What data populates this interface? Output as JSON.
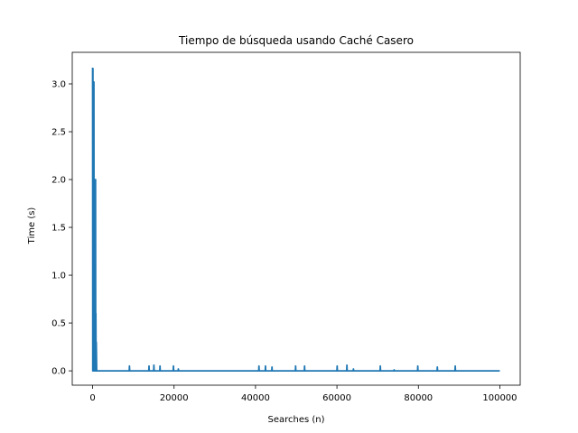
{
  "chart_data": {
    "type": "line",
    "title": "Tiempo de búsqueda usando Caché Casero",
    "xlabel": "Searches (n)",
    "ylabel": "Time (s)",
    "xlim": [
      -5000,
      105000
    ],
    "ylim": [
      -0.15,
      3.33
    ],
    "xticks": [
      0,
      20000,
      40000,
      60000,
      80000,
      100000
    ],
    "xtick_labels": [
      "0",
      "20000",
      "40000",
      "60000",
      "80000",
      "100000"
    ],
    "yticks": [
      0.0,
      0.5,
      1.0,
      1.5,
      2.0,
      2.5,
      3.0
    ],
    "ytick_labels": [
      "0.0",
      "0.5",
      "1.0",
      "1.5",
      "2.0",
      "2.5",
      "3.0"
    ],
    "grid": false,
    "color": "#1f77b4",
    "series": [
      {
        "x": [
          0,
          40,
          80,
          120,
          160,
          200,
          240,
          280,
          320,
          360,
          400,
          440,
          480,
          520,
          560,
          600,
          640,
          680,
          720,
          760,
          800,
          850,
          900,
          1000,
          1500,
          3000,
          6000,
          9000,
          9050,
          9100,
          12000,
          13800,
          13850,
          13900,
          15000,
          15050,
          15100,
          16500,
          16550,
          16600,
          19800,
          19850,
          19900,
          21000,
          21050,
          21100,
          30000,
          40800,
          40850,
          40900,
          42400,
          42450,
          42500,
          44000,
          44050,
          44100,
          49800,
          49850,
          49900,
          52000,
          52050,
          52100,
          56000,
          60000,
          60050,
          60100,
          62400,
          62450,
          62500,
          64000,
          64050,
          64100,
          67000,
          70600,
          70650,
          70700,
          74000,
          74050,
          74100,
          79800,
          79850,
          79900,
          84600,
          84650,
          84700,
          89000,
          89050,
          89100,
          95000,
          100000
        ],
        "values": [
          3.17,
          0.0,
          3.16,
          0.01,
          2.7,
          0.0,
          2.45,
          0.01,
          3.02,
          0.0,
          2.0,
          0.01,
          1.95,
          0.0,
          1.3,
          0.01,
          1.1,
          0.0,
          2.0,
          0.0,
          0.6,
          0.0,
          0.3,
          0.0,
          0.0,
          0.0,
          0.0,
          0.0,
          0.05,
          0.0,
          0.0,
          0.0,
          0.05,
          0.0,
          0.0,
          0.06,
          0.0,
          0.0,
          0.05,
          0.0,
          0.0,
          0.05,
          0.0,
          0.0,
          0.02,
          0.0,
          0.0,
          0.0,
          0.05,
          0.0,
          0.0,
          0.05,
          0.0,
          0.0,
          0.04,
          0.0,
          0.0,
          0.05,
          0.0,
          0.0,
          0.05,
          0.0,
          0.0,
          0.0,
          0.05,
          0.0,
          0.0,
          0.06,
          0.0,
          0.0,
          0.02,
          0.0,
          0.0,
          0.0,
          0.05,
          0.0,
          0.0,
          0.01,
          0.0,
          0.0,
          0.05,
          0.0,
          0.0,
          0.04,
          0.0,
          0.0,
          0.05,
          0.0,
          0.0,
          0.0
        ]
      }
    ]
  }
}
